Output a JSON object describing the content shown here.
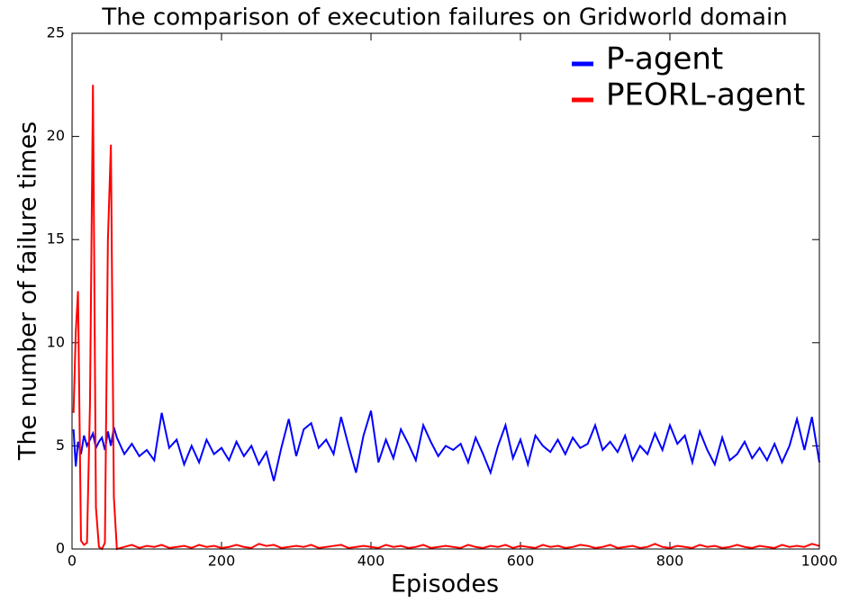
{
  "chart_data": {
    "type": "line",
    "title": "The comparison of execution failures on Gridworld domain",
    "xlabel": "Episodes",
    "ylabel": "The number of failure times",
    "x": [
      2,
      5,
      8,
      12,
      16,
      20,
      24,
      28,
      32,
      36,
      40,
      44,
      48,
      52,
      56,
      60,
      70,
      80,
      90,
      100,
      110,
      120,
      130,
      140,
      150,
      160,
      170,
      180,
      190,
      200,
      210,
      220,
      230,
      240,
      250,
      260,
      270,
      280,
      290,
      300,
      310,
      320,
      330,
      340,
      350,
      360,
      370,
      380,
      390,
      400,
      410,
      420,
      430,
      440,
      450,
      460,
      470,
      480,
      490,
      500,
      510,
      520,
      530,
      540,
      550,
      560,
      570,
      580,
      590,
      600,
      610,
      620,
      630,
      640,
      650,
      660,
      670,
      680,
      690,
      700,
      710,
      720,
      730,
      740,
      750,
      760,
      770,
      780,
      790,
      800,
      810,
      820,
      830,
      840,
      850,
      860,
      870,
      880,
      890,
      900,
      910,
      920,
      930,
      940,
      950,
      960,
      970,
      980,
      990,
      1000
    ],
    "series": [
      {
        "name": "P-agent",
        "color": "#0000ff",
        "values": [
          5.8,
          4.0,
          5.2,
          4.6,
          5.5,
          5.0,
          5.3,
          5.6,
          4.9,
          5.2,
          5.4,
          4.8,
          5.7,
          5.0,
          5.9,
          5.4,
          4.6,
          5.1,
          4.5,
          4.8,
          4.3,
          6.6,
          4.9,
          5.3,
          4.1,
          5.0,
          4.2,
          5.3,
          4.6,
          4.9,
          4.3,
          5.2,
          4.5,
          5.0,
          4.1,
          4.7,
          3.3,
          4.9,
          6.3,
          4.5,
          5.8,
          6.1,
          4.9,
          5.3,
          4.6,
          6.4,
          5.0,
          3.7,
          5.5,
          6.7,
          4.2,
          5.3,
          4.4,
          5.8,
          5.1,
          4.3,
          6.0,
          5.2,
          4.5,
          5.0,
          4.8,
          5.1,
          4.2,
          5.4,
          4.6,
          3.7,
          5.0,
          6.0,
          4.4,
          5.3,
          4.1,
          5.5,
          5.0,
          4.7,
          5.3,
          4.6,
          5.4,
          4.9,
          5.1,
          6.0,
          4.8,
          5.2,
          4.7,
          5.5,
          4.3,
          5.0,
          4.6,
          5.6,
          4.8,
          6.0,
          5.1,
          5.5,
          4.2,
          5.7,
          4.8,
          4.1,
          5.4,
          4.3,
          4.6,
          5.2,
          4.4,
          4.9,
          4.3,
          5.1,
          4.2,
          5.0,
          6.3,
          4.8,
          6.4,
          4.2
        ]
      },
      {
        "name": "PEORL-agent",
        "color": "#ff0000",
        "values": [
          6.6,
          10.5,
          12.5,
          0.4,
          0.2,
          0.3,
          7.0,
          22.5,
          2.0,
          0.1,
          0.0,
          0.3,
          15.0,
          19.6,
          2.5,
          0.0,
          0.1,
          0.2,
          0.05,
          0.15,
          0.1,
          0.2,
          0.05,
          0.1,
          0.15,
          0.05,
          0.2,
          0.1,
          0.15,
          0.05,
          0.1,
          0.2,
          0.1,
          0.05,
          0.25,
          0.15,
          0.2,
          0.05,
          0.1,
          0.15,
          0.1,
          0.2,
          0.05,
          0.1,
          0.15,
          0.2,
          0.05,
          0.1,
          0.15,
          0.1,
          0.05,
          0.2,
          0.1,
          0.15,
          0.05,
          0.1,
          0.2,
          0.05,
          0.1,
          0.15,
          0.1,
          0.05,
          0.2,
          0.1,
          0.05,
          0.15,
          0.1,
          0.2,
          0.05,
          0.15,
          0.1,
          0.05,
          0.2,
          0.1,
          0.15,
          0.05,
          0.1,
          0.2,
          0.15,
          0.05,
          0.1,
          0.2,
          0.05,
          0.1,
          0.15,
          0.05,
          0.1,
          0.25,
          0.1,
          0.05,
          0.15,
          0.1,
          0.05,
          0.2,
          0.1,
          0.15,
          0.05,
          0.1,
          0.2,
          0.1,
          0.05,
          0.15,
          0.1,
          0.05,
          0.2,
          0.1,
          0.15,
          0.1,
          0.25,
          0.15
        ]
      }
    ],
    "xlim": [
      0,
      1000
    ],
    "xticks": [
      0,
      200,
      400,
      600,
      800,
      1000
    ],
    "ylim": [
      0,
      25
    ],
    "yticks": [
      0,
      5,
      10,
      15,
      20,
      25
    ],
    "grid": false,
    "legend": "upper right"
  }
}
